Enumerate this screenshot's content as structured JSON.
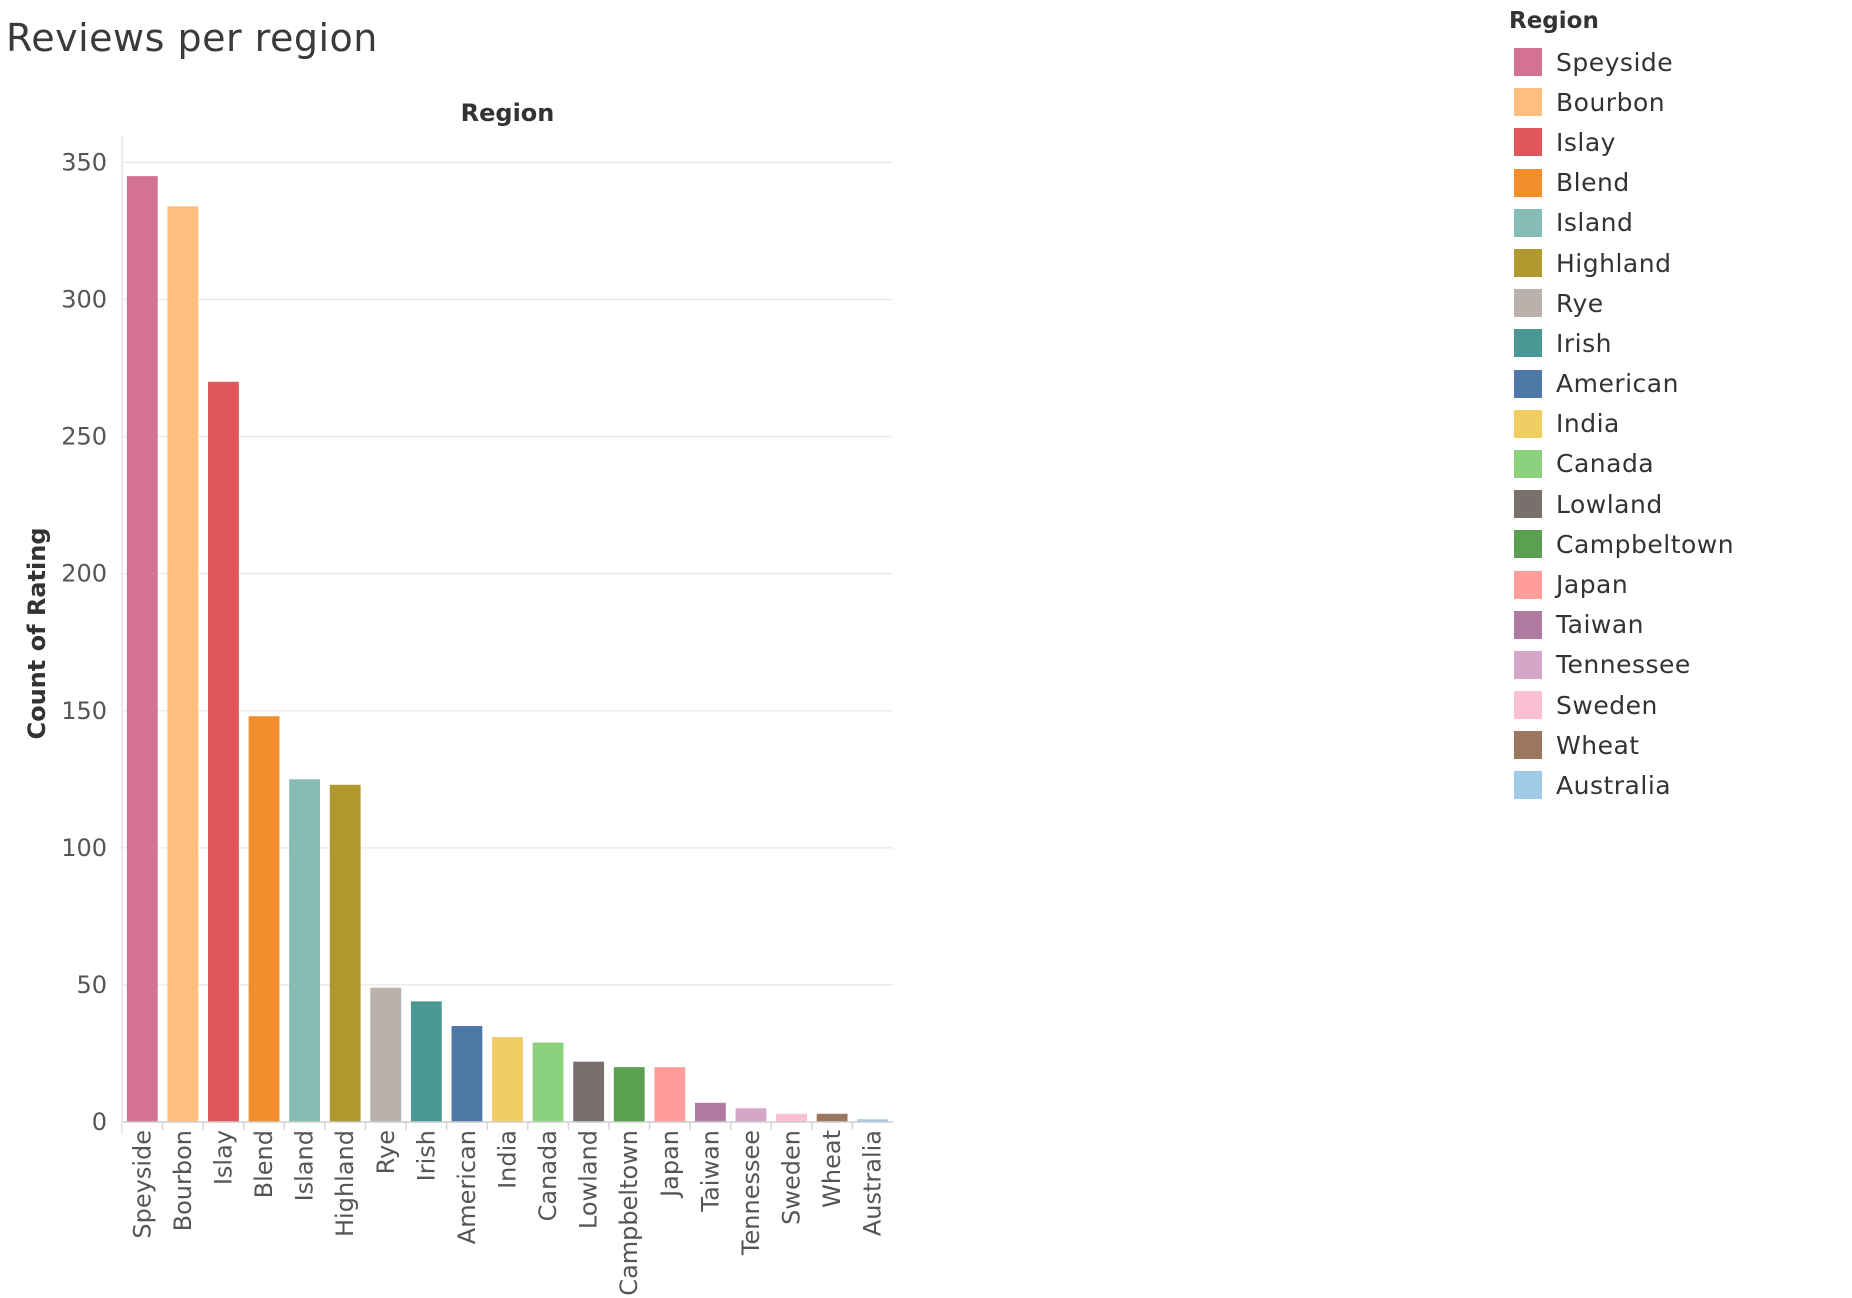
{
  "chart_data": {
    "type": "bar",
    "title": "Reviews per region",
    "column_header": "Region",
    "ylabel": "Count of Rating",
    "xlabel": "",
    "ylim": [
      0,
      360
    ],
    "yticks": [
      0,
      50,
      100,
      150,
      200,
      250,
      300,
      350
    ],
    "grid": true,
    "legend_title": "Region",
    "legend_position": "right",
    "categories": [
      "Speyside",
      "Bourbon",
      "Islay",
      "Blend",
      "Island",
      "Highland",
      "Rye",
      "Irish",
      "American",
      "India",
      "Canada",
      "Lowland",
      "Campbeltown",
      "Japan",
      "Taiwan",
      "Tennessee",
      "Sweden",
      "Wheat",
      "Australia"
    ],
    "values": [
      345,
      334,
      270,
      148,
      125,
      123,
      49,
      44,
      35,
      31,
      29,
      22,
      20,
      20,
      7,
      5,
      3,
      3,
      1
    ],
    "colors": [
      "#d37295",
      "#ffbe7d",
      "#e15759",
      "#f28e2b",
      "#86bcb6",
      "#b09a2f",
      "#bab0ac",
      "#499894",
      "#4e79a7",
      "#f1ce63",
      "#8cd17d",
      "#79706e",
      "#59a14f",
      "#ff9d9a",
      "#b07aa1",
      "#d4a6c8",
      "#fabfd2",
      "#9d7660",
      "#a0cbe8"
    ]
  }
}
